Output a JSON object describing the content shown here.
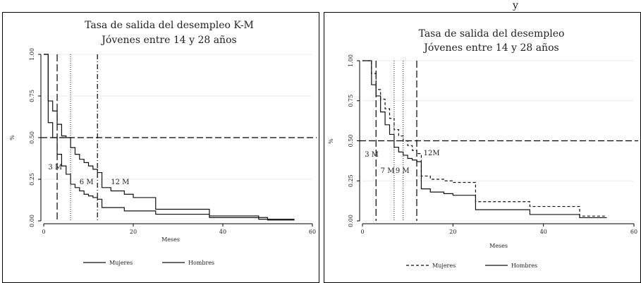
{
  "header_text": "y",
  "chart_data": [
    {
      "type": "line",
      "title": "Tasa de salida del desempleo K-M",
      "subtitle": "Jóvenes entre 14 y 28 años",
      "xlabel": "Meses",
      "ylabel": "%",
      "xlim": [
        0,
        60
      ],
      "ylim": [
        0,
        1
      ],
      "xticks": [
        0,
        20,
        40,
        60
      ],
      "yticks": [
        "0.00",
        "0.25",
        "0.50",
        "0.75",
        "1.00"
      ],
      "grid": true,
      "legend_position": "bottom",
      "hline": 0.5,
      "vlines": [
        {
          "x": 3,
          "style": "longdash",
          "label": "3 M",
          "label_x": 1.0,
          "label_y": 0.31
        },
        {
          "x": 6,
          "style": "dotted",
          "label": "6 M",
          "label_x": 8.0,
          "label_y": 0.22
        },
        {
          "x": 12,
          "style": "dashdot",
          "label": "12 M",
          "label_x": 15.0,
          "label_y": 0.22
        }
      ],
      "series": [
        {
          "name": "Mujeres",
          "style": "solid",
          "steps": [
            [
              0,
              1.0
            ],
            [
              1,
              0.72
            ],
            [
              2,
              0.66
            ],
            [
              3,
              0.58
            ],
            [
              4,
              0.51
            ],
            [
              5,
              0.5
            ],
            [
              6,
              0.44
            ],
            [
              7,
              0.4
            ],
            [
              8,
              0.37
            ],
            [
              9,
              0.35
            ],
            [
              10,
              0.33
            ],
            [
              11,
              0.31
            ],
            [
              12,
              0.29
            ],
            [
              13,
              0.2
            ],
            [
              15,
              0.18
            ],
            [
              18,
              0.16
            ],
            [
              20,
              0.14
            ],
            [
              25,
              0.07
            ],
            [
              37,
              0.03
            ],
            [
              48,
              0.02
            ],
            [
              50,
              0.01
            ],
            [
              56,
              0.01
            ]
          ]
        },
        {
          "name": "Hombres",
          "style": "solid",
          "steps": [
            [
              0,
              1.0
            ],
            [
              1,
              0.59
            ],
            [
              2,
              0.5
            ],
            [
              3,
              0.4
            ],
            [
              4,
              0.33
            ],
            [
              5,
              0.28
            ],
            [
              6,
              0.22
            ],
            [
              7,
              0.2
            ],
            [
              8,
              0.18
            ],
            [
              9,
              0.16
            ],
            [
              10,
              0.15
            ],
            [
              11,
              0.14
            ],
            [
              12,
              0.13
            ],
            [
              13,
              0.08
            ],
            [
              18,
              0.06
            ],
            [
              25,
              0.04
            ],
            [
              37,
              0.02
            ],
            [
              48,
              0.01
            ],
            [
              50,
              0.005
            ],
            [
              56,
              0.005
            ]
          ]
        }
      ]
    },
    {
      "type": "line",
      "title": "Tasa de salida del desempleo",
      "subtitle": "Jóvenes entre 14 y 28 años",
      "xlabel": "Meses",
      "ylabel": "%",
      "xlim": [
        0,
        60
      ],
      "ylim": [
        0,
        1
      ],
      "xticks": [
        0,
        20,
        40,
        60
      ],
      "yticks": [
        "0.00",
        "0.25",
        "0.50",
        "0.75",
        "1.00"
      ],
      "grid": true,
      "legend_position": "bottom",
      "hline": 0.5,
      "vlines": [
        {
          "x": 3,
          "style": "longdash",
          "label": "3 M",
          "label_x": 0.5,
          "label_y": 0.4
        },
        {
          "x": 7,
          "style": "dotted",
          "label": "7 M",
          "label_x": 4.0,
          "label_y": 0.3
        },
        {
          "x": 9,
          "style": "dotted",
          "label": "9 M",
          "label_x": 7.3,
          "label_y": 0.3
        },
        {
          "x": 12,
          "style": "longdash",
          "label": "12M",
          "label_x": 13.5,
          "label_y": 0.41
        }
      ],
      "series": [
        {
          "name": "Mujeres",
          "style": "dashed",
          "steps": [
            [
              0,
              1.0
            ],
            [
              2,
              0.92
            ],
            [
              3,
              0.82
            ],
            [
              4,
              0.76
            ],
            [
              5,
              0.7
            ],
            [
              6,
              0.64
            ],
            [
              7,
              0.57
            ],
            [
              8,
              0.53
            ],
            [
              9,
              0.5
            ],
            [
              10,
              0.47
            ],
            [
              11,
              0.44
            ],
            [
              12,
              0.42
            ],
            [
              13,
              0.28
            ],
            [
              15,
              0.26
            ],
            [
              18,
              0.25
            ],
            [
              20,
              0.24
            ],
            [
              25,
              0.12
            ],
            [
              37,
              0.09
            ],
            [
              48,
              0.03
            ],
            [
              54,
              0.03
            ]
          ]
        },
        {
          "name": "Hombres",
          "style": "solid",
          "steps": [
            [
              0,
              1.0
            ],
            [
              2,
              0.85
            ],
            [
              3,
              0.78
            ],
            [
              4,
              0.68
            ],
            [
              5,
              0.6
            ],
            [
              6,
              0.54
            ],
            [
              7,
              0.46
            ],
            [
              8,
              0.43
            ],
            [
              9,
              0.41
            ],
            [
              10,
              0.39
            ],
            [
              11,
              0.38
            ],
            [
              12,
              0.37
            ],
            [
              13,
              0.2
            ],
            [
              15,
              0.18
            ],
            [
              18,
              0.17
            ],
            [
              20,
              0.16
            ],
            [
              25,
              0.07
            ],
            [
              37,
              0.04
            ],
            [
              48,
              0.02
            ],
            [
              54,
              0.02
            ]
          ]
        }
      ]
    }
  ]
}
